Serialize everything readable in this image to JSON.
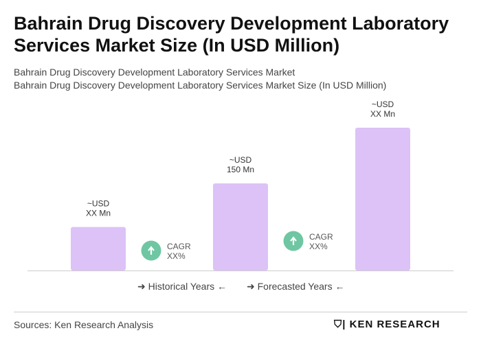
{
  "title": "Bahrain Drug Discovery Development Laboratory Services Market Size (In USD Million)",
  "subtitle1": "Bahrain Drug Discovery Development Laboratory Services Market",
  "subtitle2": "Bahrain Drug Discovery Development Laboratory Services Market Size (In USD Million)",
  "chart_data": {
    "type": "bar",
    "categories": [
      "",
      "",
      ""
    ],
    "values": [
      75,
      150,
      246
    ],
    "data_labels": [
      [
        "~USD",
        "XX Mn"
      ],
      [
        "~USD",
        "150 Mn"
      ],
      [
        "~USD",
        "XX Mn"
      ]
    ],
    "bar_color": "#dcc2f7",
    "cagr": [
      {
        "line1": "CAGR",
        "line2": "XX%"
      },
      {
        "line1": "CAGR",
        "line2": "XX%"
      }
    ],
    "cagr_color": "#6fc6a2",
    "grid": false
  },
  "legend": {
    "historical": "Historical Years",
    "forecasted": "Forecasted Years"
  },
  "source": "Sources: Ken Research Analysis",
  "logo_text": "KEN RESEARCH"
}
